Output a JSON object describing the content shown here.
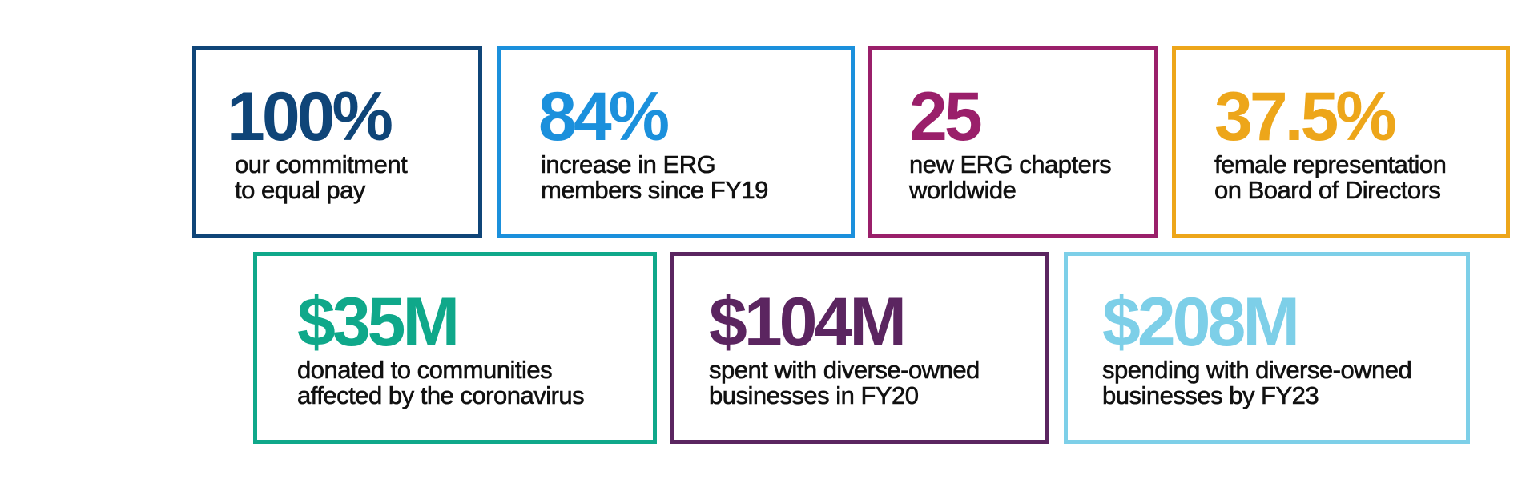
{
  "stats": [
    {
      "value": "100%",
      "description_lines": [
        "our commitment",
        "to equal pay"
      ],
      "color": "#0f4578"
    },
    {
      "value": "84%",
      "description_lines": [
        "increase in ERG",
        "members since FY19"
      ],
      "color": "#1b90dc"
    },
    {
      "value": "25",
      "description_lines": [
        "new ERG chapters",
        "worldwide"
      ],
      "color": "#9a1f6a"
    },
    {
      "value": "37.5%",
      "description_lines": [
        "female representation",
        "on Board of Directors"
      ],
      "color": "#eda61a"
    },
    {
      "value": "$35M",
      "description_lines": [
        "donated to communities",
        "affected by the coronavirus"
      ],
      "color": "#0fa88a"
    },
    {
      "value": "$104M",
      "description_lines": [
        "spent with diverse-owned",
        "businesses in FY20"
      ],
      "color": "#5b2560"
    },
    {
      "value": "$208M",
      "description_lines": [
        "spending with diverse-owned",
        "businesses by FY23"
      ],
      "color": "#7dcfe8"
    }
  ]
}
